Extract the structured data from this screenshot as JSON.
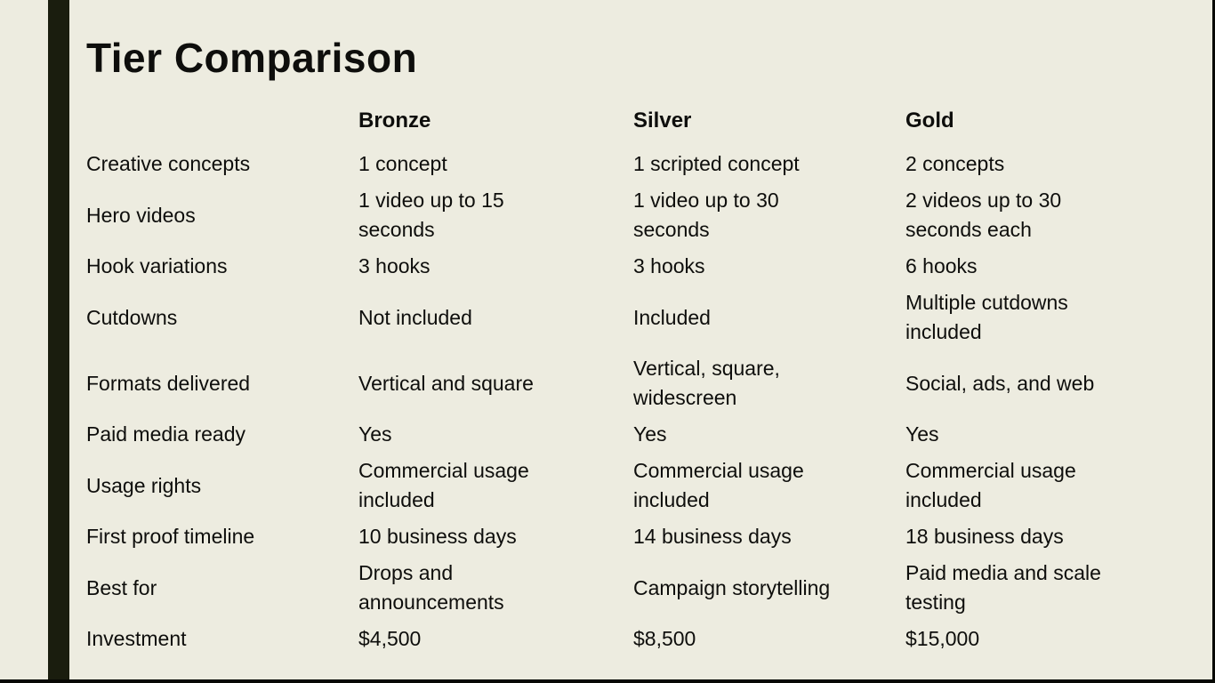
{
  "slide": {
    "title": "Tier Comparison",
    "colors": {
      "background": "#EDECE0",
      "accent_bar": "#1A1D0E",
      "frame_edge": "#070804",
      "text": "#0E0E0C"
    },
    "table": {
      "columns": [
        "Bronze",
        "Silver",
        "Gold"
      ],
      "rows": [
        {
          "label": "Creative concepts",
          "bronze": "1 concept",
          "silver": "1 scripted concept",
          "gold": "2 concepts"
        },
        {
          "label": "Hero videos",
          "bronze": "1 video up to 15\nseconds",
          "silver": "1 video up to 30\nseconds",
          "gold": "2 videos up to 30\nseconds each"
        },
        {
          "label": "Hook variations",
          "bronze": "3 hooks",
          "silver": "3 hooks",
          "gold": "6 hooks"
        },
        {
          "label": "Cutdowns",
          "bronze": "Not included",
          "silver": "Included",
          "gold": "Multiple cutdowns\nincluded"
        },
        {
          "label": "Formats delivered",
          "bronze": "Vertical and square",
          "silver": "Vertical, square,\nwidescreen",
          "gold": "Social, ads, and web"
        },
        {
          "label": "Paid media ready",
          "bronze": "Yes",
          "silver": "Yes",
          "gold": "Yes"
        },
        {
          "label": "Usage rights",
          "bronze": "Commercial usage\nincluded",
          "silver": "Commercial usage\nincluded",
          "gold": "Commercial usage\nincluded"
        },
        {
          "label": "First proof timeline",
          "bronze": "10 business days",
          "silver": "14 business days",
          "gold": "18 business days"
        },
        {
          "label": "Best for",
          "bronze": "Drops and\nannouncements",
          "silver": "Campaign storytelling",
          "gold": "Paid media and scale\ntesting"
        },
        {
          "label": "Investment",
          "bronze": "$4,500",
          "silver": "$8,500",
          "gold": "$15,000"
        }
      ]
    }
  }
}
